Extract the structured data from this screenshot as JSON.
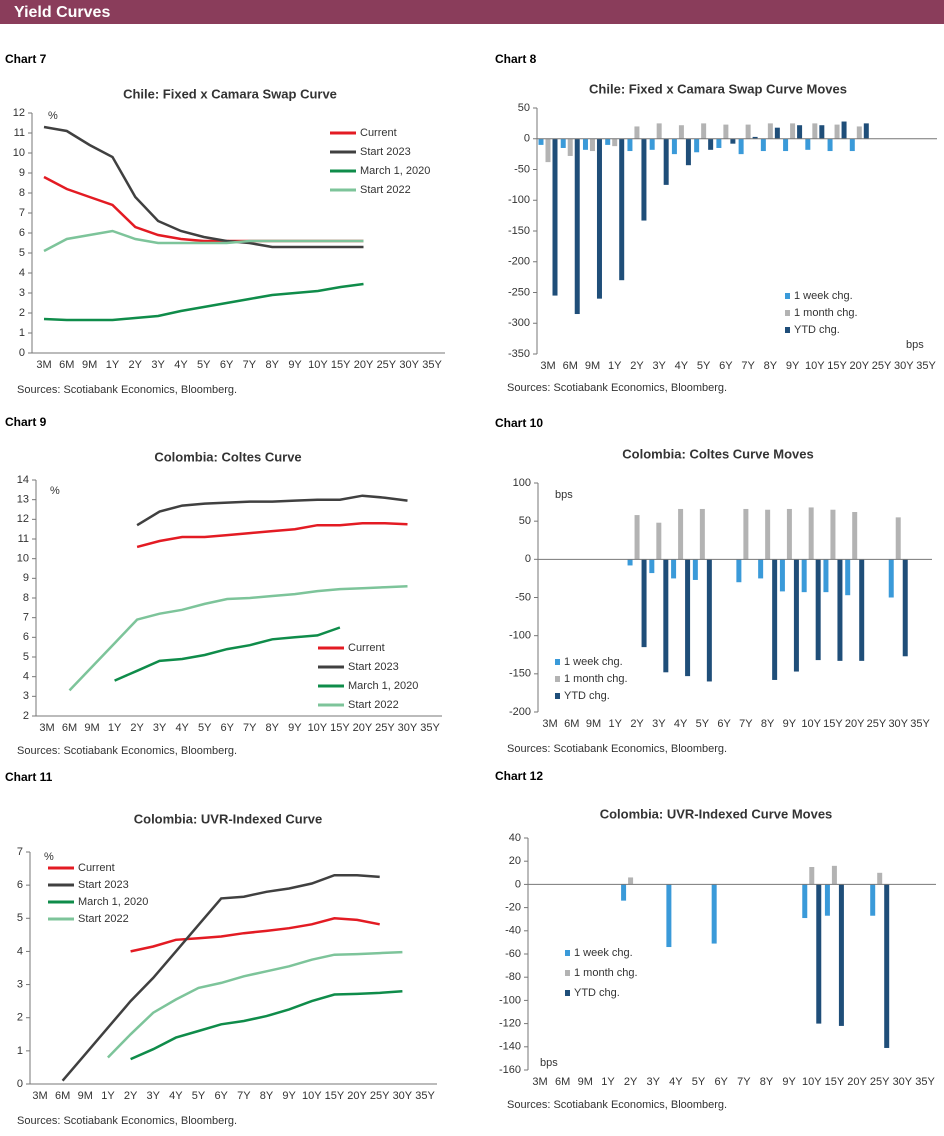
{
  "header": {
    "title": "Yield Curves"
  },
  "chart_data": [
    {
      "label": "Chart 7",
      "type": "line",
      "title": "Chile: Fixed x Camara Swap Curve",
      "y_unit": "%",
      "categories": [
        "3M",
        "6M",
        "9M",
        "1Y",
        "2Y",
        "3Y",
        "4Y",
        "5Y",
        "6Y",
        "7Y",
        "8Y",
        "9Y",
        "10Y",
        "15Y",
        "20Y",
        "25Y",
        "30Y",
        "35Y"
      ],
      "ylim": [
        0,
        12
      ],
      "yticks": [
        0,
        1,
        2,
        3,
        4,
        5,
        6,
        7,
        8,
        9,
        10,
        11,
        12
      ],
      "series": [
        {
          "name": "Current",
          "color": "#e31b23",
          "values": [
            8.8,
            8.2,
            7.8,
            7.4,
            6.3,
            5.9,
            5.7,
            5.6,
            5.6,
            5.6,
            5.6,
            5.6,
            5.6,
            5.6,
            5.6,
            null,
            null,
            null
          ]
        },
        {
          "name": "Start 2023",
          "color": "#404040",
          "values": [
            11.3,
            11.1,
            10.4,
            9.8,
            7.8,
            6.6,
            6.1,
            5.8,
            5.6,
            5.5,
            5.3,
            5.3,
            5.3,
            5.3,
            5.3,
            null,
            null,
            null
          ]
        },
        {
          "name": "March 1, 2020",
          "color": "#0f8c4a",
          "values": [
            1.7,
            1.65,
            1.65,
            1.65,
            1.75,
            1.85,
            2.1,
            2.3,
            2.5,
            2.7,
            2.9,
            3.0,
            3.1,
            3.3,
            3.45,
            null,
            null,
            null
          ]
        },
        {
          "name": "Start 2022",
          "color": "#7dc49a",
          "values": [
            5.1,
            5.7,
            5.9,
            6.1,
            5.7,
            5.5,
            5.5,
            5.5,
            5.5,
            5.6,
            5.6,
            5.6,
            5.6,
            5.6,
            5.6,
            null,
            null,
            null
          ]
        }
      ],
      "source": "Sources: Scotiabank Economics, Bloomberg."
    },
    {
      "label": "Chart 8",
      "type": "bar",
      "title": "Chile: Fixed x Camara Swap Curve Moves",
      "y_unit": "bps",
      "categories": [
        "3M",
        "6M",
        "9M",
        "1Y",
        "2Y",
        "3Y",
        "4Y",
        "5Y",
        "6Y",
        "7Y",
        "8Y",
        "9Y",
        "10Y",
        "15Y",
        "20Y",
        "25Y",
        "30Y",
        "35Y"
      ],
      "ylim": [
        -350,
        50
      ],
      "yticks": [
        -350,
        -300,
        -250,
        -200,
        -150,
        -100,
        -50,
        0,
        50
      ],
      "series": [
        {
          "name": "1 week chg.",
          "color": "#3a9ad9",
          "values": [
            -10,
            -15,
            -18,
            -10,
            -20,
            -18,
            -25,
            -22,
            -15,
            -25,
            -20,
            -20,
            -18,
            -20,
            -20,
            null,
            null,
            null
          ]
        },
        {
          "name": "1 month chg.",
          "color": "#b3b3b3",
          "values": [
            -38,
            -28,
            -20,
            -12,
            20,
            25,
            22,
            25,
            23,
            23,
            25,
            25,
            25,
            23,
            20,
            null,
            null,
            null
          ]
        },
        {
          "name": "YTD chg.",
          "color": "#1f4e79",
          "values": [
            -255,
            -285,
            -260,
            -230,
            -133,
            -75,
            -43,
            -18,
            -8,
            3,
            18,
            22,
            22,
            28,
            25,
            null,
            null,
            null
          ]
        }
      ],
      "source": "Sources: Scotiabank Economics, Bloomberg."
    },
    {
      "label": "Chart 9",
      "type": "line",
      "title": "Colombia: Coltes Curve",
      "y_unit": "%",
      "categories": [
        "3M",
        "6M",
        "9M",
        "1Y",
        "2Y",
        "3Y",
        "4Y",
        "5Y",
        "6Y",
        "7Y",
        "8Y",
        "9Y",
        "10Y",
        "15Y",
        "20Y",
        "25Y",
        "30Y",
        "35Y"
      ],
      "ylim": [
        2,
        14
      ],
      "yticks": [
        2,
        3,
        4,
        5,
        6,
        7,
        8,
        9,
        10,
        11,
        12,
        13,
        14
      ],
      "series": [
        {
          "name": "Current",
          "color": "#e31b23",
          "values": [
            null,
            null,
            null,
            null,
            10.6,
            10.9,
            11.1,
            11.1,
            11.2,
            11.3,
            11.4,
            11.5,
            11.7,
            11.7,
            11.8,
            11.8,
            11.75,
            null
          ]
        },
        {
          "name": "Start 2023",
          "color": "#404040",
          "values": [
            null,
            null,
            null,
            null,
            11.7,
            12.4,
            12.7,
            12.8,
            12.85,
            12.9,
            12.9,
            12.95,
            13.0,
            13.0,
            13.2,
            13.1,
            12.95,
            null
          ]
        },
        {
          "name": "March 1, 2020",
          "color": "#0f8c4a",
          "values": [
            null,
            null,
            null,
            3.8,
            4.3,
            4.8,
            4.9,
            5.1,
            5.4,
            5.6,
            5.9,
            6.0,
            6.1,
            6.5,
            null,
            null,
            null,
            null
          ]
        },
        {
          "name": "Start 2022",
          "color": "#7dc49a",
          "values": [
            null,
            3.3,
            4.5,
            5.7,
            6.9,
            7.2,
            7.4,
            7.7,
            7.95,
            8.0,
            8.1,
            8.2,
            8.35,
            8.45,
            8.5,
            8.55,
            8.6,
            null
          ]
        }
      ],
      "source": "Sources: Scotiabank Economics, Bloomberg."
    },
    {
      "label": "Chart 10",
      "type": "bar",
      "title": "Colombia: Coltes Curve Moves",
      "y_unit": "bps",
      "categories": [
        "3M",
        "6M",
        "9M",
        "1Y",
        "2Y",
        "3Y",
        "4Y",
        "5Y",
        "6Y",
        "7Y",
        "8Y",
        "9Y",
        "10Y",
        "15Y",
        "20Y",
        "25Y",
        "30Y",
        "35Y"
      ],
      "ylim": [
        -200,
        100
      ],
      "yticks": [
        -200,
        -150,
        -100,
        -50,
        0,
        50,
        100
      ],
      "series": [
        {
          "name": "1 week chg.",
          "color": "#3a9ad9",
          "values": [
            null,
            null,
            null,
            null,
            -8,
            -18,
            -25,
            -27,
            null,
            -30,
            -25,
            -42,
            -43,
            -43,
            -47,
            null,
            -50,
            null
          ]
        },
        {
          "name": "1 month chg.",
          "color": "#b3b3b3",
          "values": [
            null,
            null,
            null,
            null,
            58,
            48,
            66,
            66,
            null,
            66,
            65,
            66,
            68,
            65,
            62,
            null,
            55,
            null
          ]
        },
        {
          "name": "YTD chg.",
          "color": "#1f4e79",
          "values": [
            null,
            null,
            null,
            null,
            -115,
            -148,
            -153,
            -160,
            null,
            null,
            -158,
            -147,
            -132,
            -133,
            -133,
            null,
            -127,
            null
          ]
        }
      ],
      "source": "Sources: Scotiabank Economics, Bloomberg."
    },
    {
      "label": "Chart 11",
      "type": "line",
      "title": "Colombia: UVR-Indexed Curve",
      "y_unit": "%",
      "categories": [
        "3M",
        "6M",
        "9M",
        "1Y",
        "2Y",
        "3Y",
        "4Y",
        "5Y",
        "6Y",
        "7Y",
        "8Y",
        "9Y",
        "10Y",
        "15Y",
        "20Y",
        "25Y",
        "30Y",
        "35Y"
      ],
      "ylim": [
        0,
        7
      ],
      "yticks": [
        0,
        1,
        2,
        3,
        4,
        5,
        6,
        7
      ],
      "series": [
        {
          "name": "Current",
          "color": "#e31b23",
          "values": [
            null,
            null,
            null,
            null,
            4.0,
            4.15,
            4.35,
            4.4,
            4.45,
            4.55,
            4.62,
            4.7,
            4.82,
            5.0,
            4.95,
            4.82,
            null,
            null
          ]
        },
        {
          "name": "Start 2023",
          "color": "#404040",
          "values": [
            null,
            0.1,
            0.9,
            1.7,
            2.5,
            3.2,
            4.0,
            4.8,
            5.6,
            5.65,
            5.8,
            5.9,
            6.05,
            6.3,
            6.3,
            6.25,
            null,
            null
          ]
        },
        {
          "name": "March 1, 2020",
          "color": "#0f8c4a",
          "values": [
            null,
            null,
            null,
            null,
            0.75,
            1.05,
            1.4,
            1.6,
            1.8,
            1.9,
            2.05,
            2.25,
            2.5,
            2.7,
            2.72,
            2.75,
            2.8,
            null
          ]
        },
        {
          "name": "Start 2022",
          "color": "#7dc49a",
          "values": [
            null,
            null,
            null,
            0.8,
            1.5,
            2.15,
            2.55,
            2.9,
            3.05,
            3.25,
            3.4,
            3.55,
            3.75,
            3.9,
            3.92,
            3.95,
            3.98,
            null
          ]
        }
      ],
      "source": "Sources: Scotiabank Economics, Bloomberg."
    },
    {
      "label": "Chart 12",
      "type": "bar",
      "title": "Colombia: UVR-Indexed Curve Moves",
      "y_unit": "bps",
      "categories": [
        "3M",
        "6M",
        "9M",
        "1Y",
        "2Y",
        "3Y",
        "4Y",
        "5Y",
        "6Y",
        "7Y",
        "8Y",
        "9Y",
        "10Y",
        "15Y",
        "20Y",
        "25Y",
        "30Y",
        "35Y"
      ],
      "ylim": [
        -160,
        40
      ],
      "yticks": [
        -160,
        -140,
        -120,
        -100,
        -80,
        -60,
        -40,
        -20,
        0,
        20,
        40
      ],
      "series": [
        {
          "name": "1 week chg.",
          "color": "#3a9ad9",
          "values": [
            null,
            null,
            null,
            null,
            -14,
            null,
            -54,
            null,
            -51,
            null,
            null,
            null,
            -29,
            -27,
            null,
            -27,
            null,
            null
          ]
        },
        {
          "name": "1 month chg.",
          "color": "#b3b3b3",
          "values": [
            null,
            null,
            null,
            null,
            6,
            null,
            null,
            null,
            null,
            null,
            null,
            null,
            15,
            16,
            null,
            10,
            null,
            null
          ]
        },
        {
          "name": "YTD chg.",
          "color": "#1f4e79",
          "values": [
            null,
            null,
            null,
            null,
            null,
            null,
            null,
            null,
            null,
            null,
            null,
            null,
            -120,
            -122,
            null,
            -141,
            null,
            null
          ]
        }
      ],
      "source": "Sources: Scotiabank Economics, Bloomberg."
    }
  ]
}
